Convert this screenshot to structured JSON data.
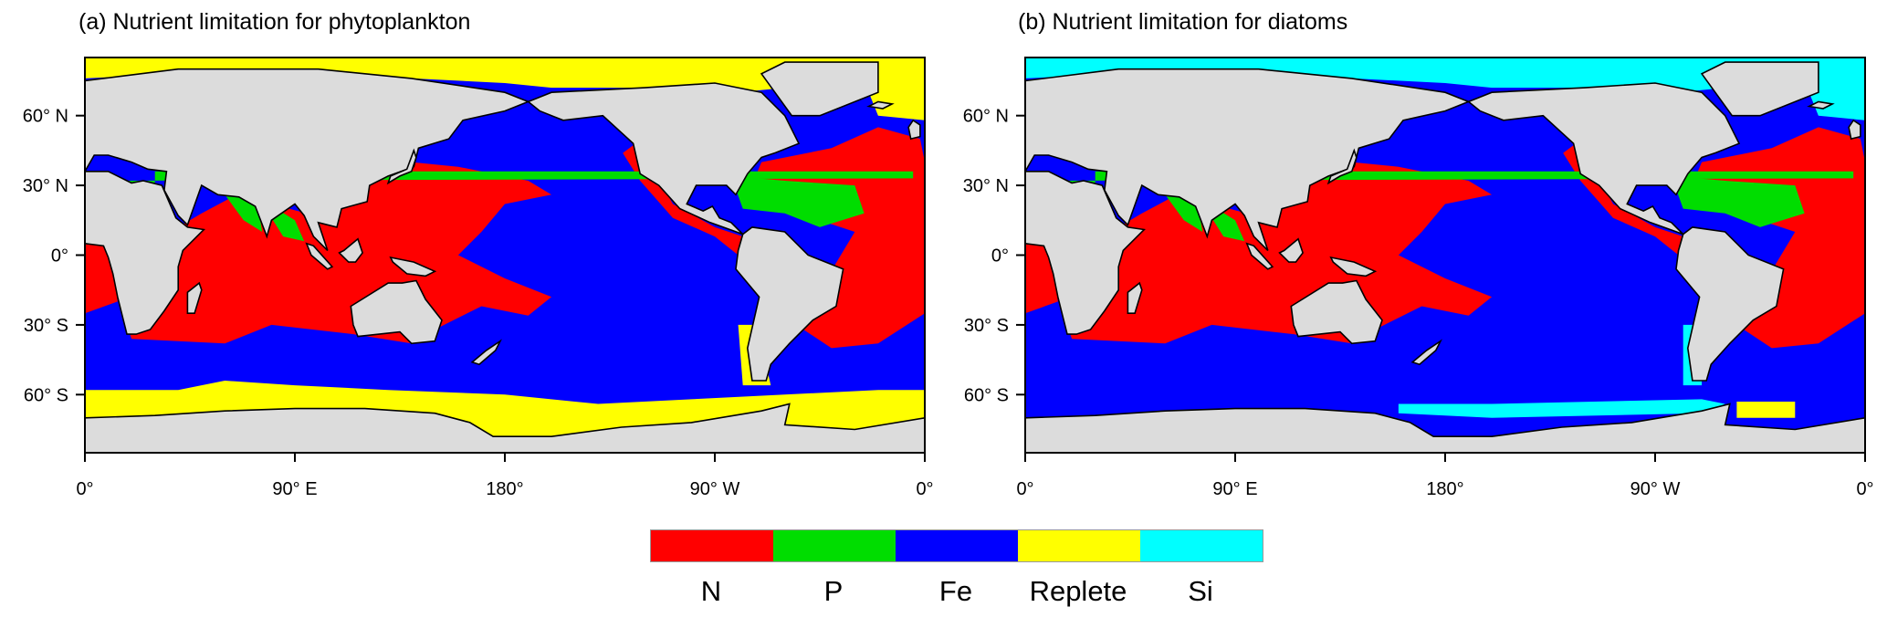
{
  "panels": [
    {
      "title": "(a) Nutrient limitation for phytoplankton",
      "x_ticks": [
        "0°",
        "90° E",
        "180°",
        "90° W",
        "0°"
      ],
      "y_ticks": [
        "60° N",
        "30° N",
        "0°",
        "30° S",
        "60° S"
      ],
      "variant": "phytoplankton"
    },
    {
      "title": "(b) Nutrient limitation for diatoms",
      "x_ticks": [
        "0°",
        "90° E",
        "180°",
        "90° W",
        "0°"
      ],
      "y_ticks": [
        "60° N",
        "30° N",
        "0°",
        "30° S",
        "60° S"
      ],
      "variant": "diatoms"
    }
  ],
  "legend": {
    "items": [
      {
        "label": "N",
        "color": "#ff0000"
      },
      {
        "label": "P",
        "color": "#00dd00"
      },
      {
        "label": "Fe",
        "color": "#0000ff"
      },
      {
        "label": "Replete",
        "color": "#ffff00"
      },
      {
        "label": "Si",
        "color": "#00ffff"
      }
    ]
  },
  "colors": {
    "land": "#dcdcdc",
    "N": "#ff0000",
    "P": "#00dd00",
    "Fe": "#0000ff",
    "Replete": "#ffff00",
    "Si": "#00ffff"
  }
}
